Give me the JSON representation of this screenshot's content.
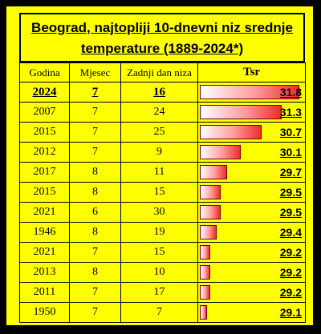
{
  "title_line1": "Beograd, najtopliji 10-dnevni niz srednje",
  "title_line2": "temperature (1889-2024*)",
  "columns": [
    "Godina",
    "Mjesec",
    "Zadnji dan niza",
    "Tsr"
  ],
  "chart_data": {
    "type": "table",
    "title": "Beograd, najtopliji 10-dnevni niz srednje temperature (1889-2024*)",
    "bar_scale": [
      28.9,
      31.9
    ],
    "rows": [
      {
        "year": "2024",
        "month": "7",
        "last_day": "16",
        "tsr": "31.8"
      },
      {
        "year": "2007",
        "month": "7",
        "last_day": "24",
        "tsr": "31.3"
      },
      {
        "year": "2015",
        "month": "7",
        "last_day": "25",
        "tsr": "30.7"
      },
      {
        "year": "2012",
        "month": "7",
        "last_day": "9",
        "tsr": "30.1"
      },
      {
        "year": "2017",
        "month": "8",
        "last_day": "11",
        "tsr": "29.7"
      },
      {
        "year": "2015",
        "month": "8",
        "last_day": "15",
        "tsr": "29.5"
      },
      {
        "year": "2021",
        "month": "6",
        "last_day": "30",
        "tsr": "29.5"
      },
      {
        "year": "1946",
        "month": "8",
        "last_day": "19",
        "tsr": "29.4"
      },
      {
        "year": "2021",
        "month": "7",
        "last_day": "15",
        "tsr": "29.2"
      },
      {
        "year": "2013",
        "month": "8",
        "last_day": "10",
        "tsr": "29.2"
      },
      {
        "year": "2011",
        "month": "7",
        "last_day": "17",
        "tsr": "29.2"
      },
      {
        "year": "1950",
        "month": "7",
        "last_day": "7",
        "tsr": "29.1"
      }
    ]
  },
  "colors": {
    "background": "#ffff00",
    "frame": "#000000",
    "bar_start": "#ffffff",
    "bar_end": "#ee2c2c"
  }
}
